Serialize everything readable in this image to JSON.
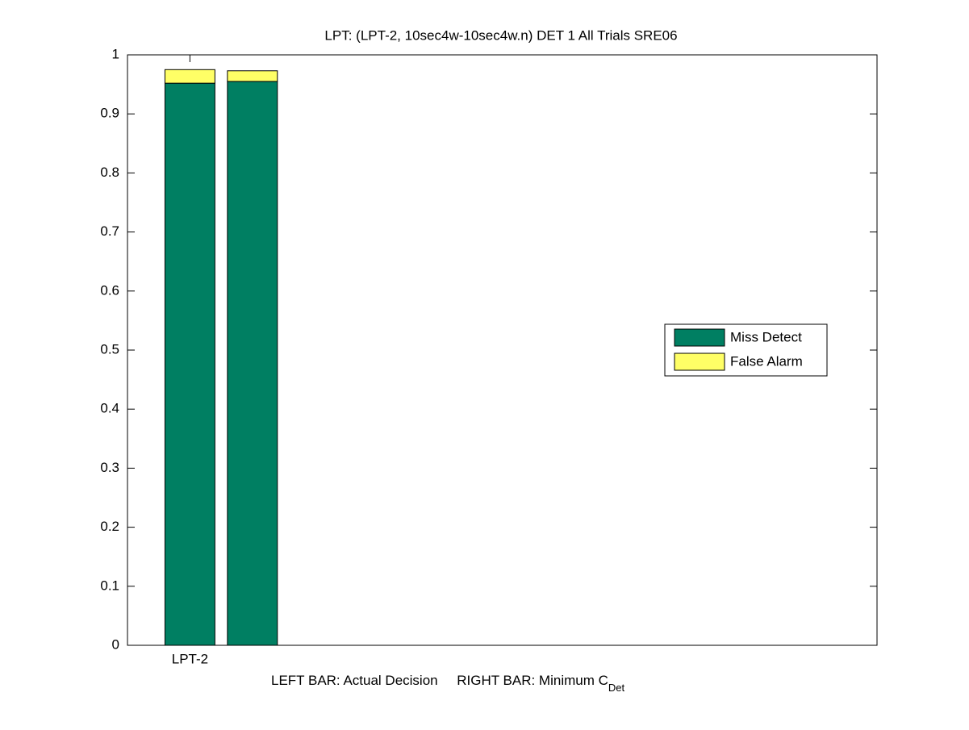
{
  "chart_data": {
    "type": "bar",
    "stacked": true,
    "title": "LPT: (LPT-2, 10sec4w-10sec4w.n) DET 1 All Trials SRE06",
    "xlabel": "LEFT BAR: Actual Decision     RIGHT BAR: Minimum C",
    "xlabel_subscript": "Det",
    "x": [
      1,
      1.5
    ],
    "xlim": [
      0.5,
      6.5
    ],
    "xticks": [
      {
        "value": 1,
        "label": "LPT-2"
      }
    ],
    "ylim": [
      0,
      1
    ],
    "yticks": [
      0,
      0.1,
      0.2,
      0.3,
      0.4,
      0.5,
      0.6,
      0.7,
      0.8,
      0.9,
      1
    ],
    "bar_width": 0.4,
    "grid": false,
    "legend": "east",
    "series": [
      {
        "name": "Miss Detect",
        "color": "#007f62",
        "values": [
          0.952,
          0.955
        ]
      },
      {
        "name": "False Alarm",
        "color": "#ffff66",
        "values": [
          0.023,
          0.018
        ]
      }
    ]
  }
}
